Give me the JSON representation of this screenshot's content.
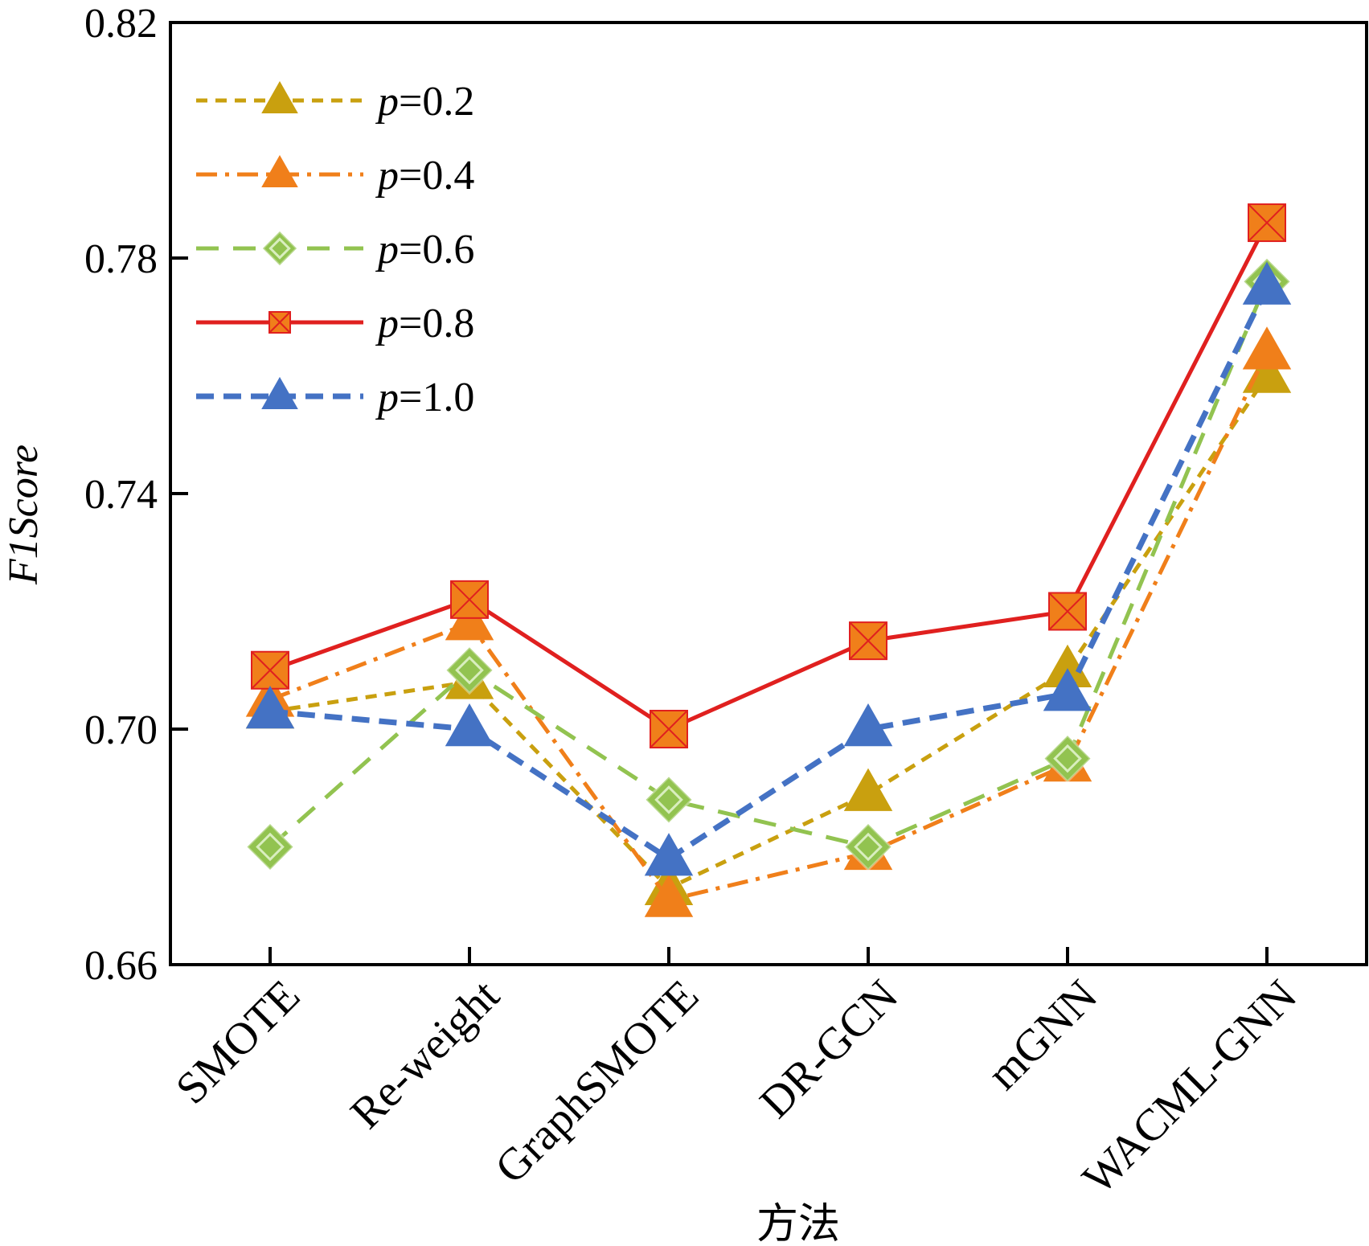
{
  "chart_data": {
    "type": "line",
    "xlabel": "方法",
    "ylabel": {
      "italic_part": "F1Score",
      "full": "F1Score"
    },
    "ylim": [
      0.66,
      0.82
    ],
    "yticks": [
      "0.66",
      "0.70",
      "0.74",
      "0.78",
      "0.82"
    ],
    "ytick_values": [
      0.66,
      0.7,
      0.74,
      0.78,
      0.82
    ],
    "categories": [
      "SMOTE",
      "Re-weight",
      "GraphSMOTE",
      "DR-GCN",
      "mGNN",
      "WACML-GNN"
    ],
    "legend_position": "top-left",
    "grid": false,
    "series": [
      {
        "name": "p=0.2",
        "legend_var": "p",
        "legend_val": "=0.2",
        "color": "#C9A00F",
        "dash": "dashed",
        "marker": "triangle",
        "values": [
          0.703,
          0.708,
          0.673,
          0.689,
          0.71,
          0.76
        ]
      },
      {
        "name": "p=0.4",
        "legend_var": "p",
        "legend_val": "=0.4",
        "color": "#F07F1A",
        "dash": "dashdot",
        "marker": "triangle",
        "values": [
          0.705,
          0.718,
          0.671,
          0.679,
          0.694,
          0.764
        ]
      },
      {
        "name": "p=0.6",
        "legend_var": "p",
        "legend_val": "=0.6",
        "color": "#92C350",
        "dash": "longdash",
        "marker": "diamond",
        "values": [
          0.68,
          0.71,
          0.688,
          0.68,
          0.695,
          0.776
        ]
      },
      {
        "name": "p=0.8",
        "legend_var": "p",
        "legend_val": "=0.8",
        "color": "#E0201F",
        "dash": "solid",
        "marker": "square-x",
        "values": [
          0.71,
          0.722,
          0.7,
          0.715,
          0.72,
          0.786
        ]
      },
      {
        "name": "p=1.0",
        "legend_var": "p",
        "legend_val": "=1.0",
        "color": "#4472C4",
        "dash": "bolddash",
        "marker": "triangle",
        "values": [
          0.703,
          0.7,
          0.678,
          0.7,
          0.706,
          0.775
        ]
      }
    ]
  }
}
